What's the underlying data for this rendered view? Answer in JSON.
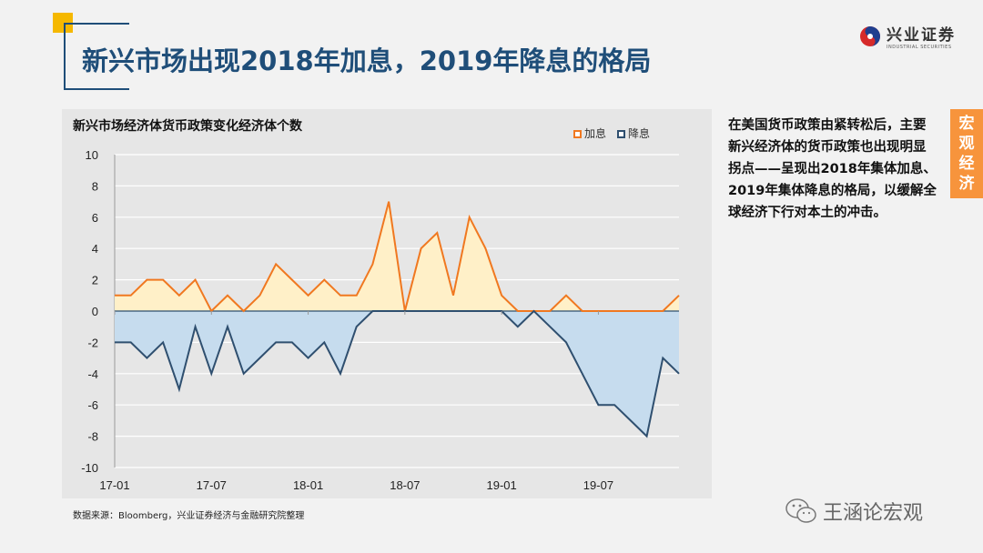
{
  "slide": {
    "title": "新兴市场出现2018年加息，2019年降息的格局",
    "logo": {
      "name": "兴业证券",
      "sub": "INDUSTRIAL SECURITIES"
    },
    "side_text": "在美国货币政策由紧转松后，主要新兴经济体的货币政策也出现明显拐点——呈现出2018年集体加息、2019年集体降息的格局，以缓解全球经济下行对本土的冲击。",
    "tag": [
      "宏",
      "观",
      "经",
      "济"
    ],
    "source": "数据来源：Bloomberg，兴业证券经济与金融研究院整理",
    "watermark": "王涵论宏观",
    "accent": "#1f4e79",
    "tag_color": "#f7943c"
  },
  "chart_data": {
    "type": "area",
    "title": "新兴市场经济体货币政策变化经济体个数",
    "x": [
      "17-01",
      "17-02",
      "17-03",
      "17-04",
      "17-05",
      "17-06",
      "17-07",
      "17-08",
      "17-09",
      "17-10",
      "17-11",
      "17-12",
      "18-01",
      "18-02",
      "18-03",
      "18-04",
      "18-05",
      "18-06",
      "18-07",
      "18-08",
      "18-09",
      "18-10",
      "18-11",
      "18-12",
      "19-01",
      "19-02",
      "19-03",
      "19-04",
      "19-05",
      "19-06",
      "19-07",
      "19-08",
      "19-09",
      "19-10",
      "19-11",
      "19-12"
    ],
    "xticks": [
      "17-01",
      "17-07",
      "18-01",
      "18-07",
      "19-01",
      "19-07"
    ],
    "yticks": [
      10,
      8,
      6,
      4,
      2,
      0,
      -2,
      -4,
      -6,
      -8,
      -10
    ],
    "ylim": [
      -10,
      10
    ],
    "grid": true,
    "legend_position": "top-right",
    "series": [
      {
        "name": "加息",
        "line_color": "#f07820",
        "fill_color": "#fff0c8",
        "values": [
          1,
          1,
          2,
          2,
          1,
          2,
          0,
          1,
          0,
          1,
          3,
          2,
          1,
          2,
          1,
          1,
          3,
          7,
          0,
          4,
          5,
          1,
          6,
          4,
          1,
          0,
          0,
          0,
          1,
          0,
          0,
          0,
          0,
          0,
          0,
          1
        ]
      },
      {
        "name": "降息",
        "line_color": "#2f4f6f",
        "fill_color": "#c6dcee",
        "values": [
          -2,
          -2,
          -3,
          -2,
          -5,
          -1,
          -4,
          -1,
          -4,
          -3,
          -2,
          -2,
          -3,
          -2,
          -4,
          -1,
          0,
          0,
          0,
          0,
          0,
          0,
          0,
          0,
          0,
          -1,
          0,
          -1,
          -2,
          -4,
          -6,
          -6,
          -7,
          -8,
          -3,
          -4
        ]
      }
    ]
  }
}
